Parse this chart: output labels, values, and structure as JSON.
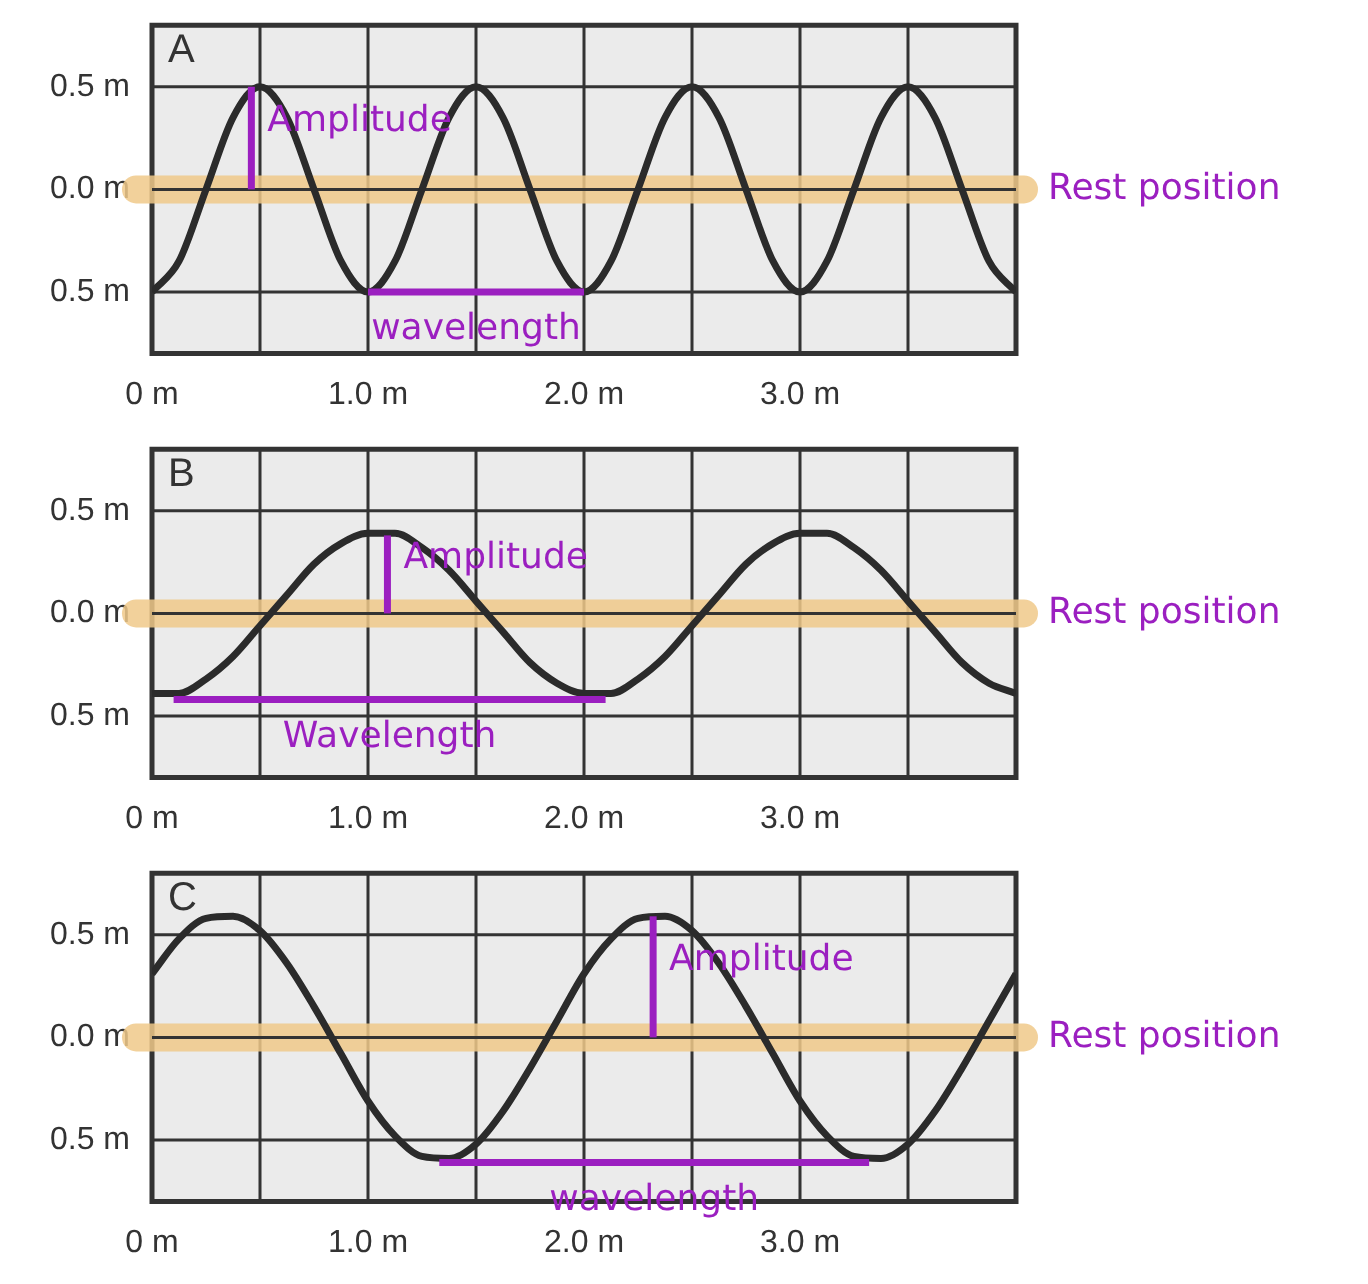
{
  "chart_data": [
    {
      "type": "line",
      "title": "A",
      "x": [
        0,
        0.125,
        0.25,
        0.375,
        0.5,
        0.625,
        0.75,
        0.875,
        1,
        1.125,
        1.25,
        1.375,
        1.5,
        1.625,
        1.75,
        1.875,
        2,
        2.125,
        2.25,
        2.375,
        2.5,
        2.625,
        2.75,
        2.875,
        3,
        3.125,
        3.25,
        3.375,
        3.5,
        3.625,
        3.75,
        3.875,
        4
      ],
      "series": [
        {
          "color": "#2b2b2b",
          "marker": "none",
          "values": [
            -0.5,
            -0.35,
            0,
            0.35,
            0.5,
            0.35,
            0,
            -0.35,
            -0.5,
            -0.35,
            0,
            0.35,
            0.5,
            0.35,
            0,
            -0.35,
            -0.5,
            -0.35,
            0,
            0.35,
            0.5,
            0.35,
            0,
            -0.35,
            -0.5,
            -0.35,
            0,
            0.35,
            0.5,
            0.35,
            0,
            -0.35,
            -0.5
          ]
        },
        {
          "type": "line",
          "name": "wavelength",
          "color": "#9b1fc0",
          "x": [
            1,
            2
          ],
          "values": [
            -0.5,
            -0.5
          ]
        }
      ],
      "xlim": [
        0,
        4
      ],
      "xticks": [
        {
          "value": 0,
          "label": "0 m"
        },
        {
          "value": 0.5,
          "label": null
        },
        {
          "value": 1,
          "label": "1.0 m"
        },
        {
          "value": 1.5,
          "label": null
        },
        {
          "value": 2,
          "label": "2.0 m"
        },
        {
          "value": 2.5,
          "label": null
        },
        {
          "value": 3,
          "label": "3.0 m"
        },
        {
          "value": 3.5,
          "label": null
        }
      ],
      "ylim": [
        -0.8,
        0.8
      ],
      "yticks": [
        {
          "value": -0.5,
          "label": "0.5 m"
        },
        {
          "value": 0,
          "label": "0.0 m"
        },
        {
          "value": 0.5,
          "label": "0.5 m"
        }
      ],
      "grid": true,
      "ref_lines": [
        {
          "axis": "y",
          "value": 0,
          "label": "Rest position",
          "color": "#f0c98a"
        }
      ],
      "annotations": [
        {
          "text": "Amplitude",
          "x": 0.46,
          "y": 0.5
        }
      ]
    },
    {
      "type": "line",
      "title": "B",
      "x": [
        0,
        0.125,
        0.25,
        0.375,
        0.5,
        0.625,
        0.75,
        0.875,
        1,
        1.125,
        1.25,
        1.375,
        1.5,
        1.625,
        1.75,
        1.875,
        2,
        2.125,
        2.25,
        2.375,
        2.5,
        2.625,
        2.75,
        2.875,
        3,
        3.125,
        3.25,
        3.375,
        3.5,
        3.625,
        3.75,
        3.875,
        4
      ],
      "series": [
        {
          "color": "#2b2b2b",
          "marker": "none",
          "values": [
            -0.39,
            -0.39,
            -0.32,
            -0.21,
            -0.06,
            0.09,
            0.24,
            0.34,
            0.39,
            0.39,
            0.32,
            0.21,
            0.06,
            -0.09,
            -0.24,
            -0.34,
            -0.39,
            -0.39,
            -0.32,
            -0.21,
            -0.06,
            0.09,
            0.24,
            0.34,
            0.39,
            0.39,
            0.32,
            0.21,
            0.06,
            -0.09,
            -0.24,
            -0.34,
            -0.39
          ]
        },
        {
          "type": "line",
          "name": "Wavelength",
          "color": "#9b1fc0",
          "x": [
            0.1,
            2.1
          ],
          "values": [
            -0.42,
            -0.42
          ]
        }
      ],
      "xlim": [
        0,
        4
      ],
      "xticks": [
        {
          "value": 0,
          "label": "0 m"
        },
        {
          "value": 0.5,
          "label": null
        },
        {
          "value": 1,
          "label": "1.0 m"
        },
        {
          "value": 1.5,
          "label": null
        },
        {
          "value": 2,
          "label": "2.0 m"
        },
        {
          "value": 2.5,
          "label": null
        },
        {
          "value": 3,
          "label": "3.0 m"
        },
        {
          "value": 3.5,
          "label": null
        }
      ],
      "ylim": [
        -0.8,
        0.8
      ],
      "yticks": [
        {
          "value": -0.5,
          "label": "0.5 m"
        },
        {
          "value": 0,
          "label": "0.0 m"
        },
        {
          "value": 0.5,
          "label": "0.5 m"
        }
      ],
      "grid": true,
      "ref_lines": [
        {
          "axis": "y",
          "value": 0,
          "label": "Rest position",
          "color": "#f0c98a"
        }
      ],
      "annotations": [
        {
          "text": "Amplitude",
          "x": 1.09,
          "y": 0.38
        }
      ]
    },
    {
      "type": "line",
      "title": "C",
      "x": [
        0,
        0.125,
        0.25,
        0.375,
        0.5,
        0.625,
        0.75,
        0.875,
        1,
        1.125,
        1.25,
        1.375,
        1.5,
        1.625,
        1.75,
        1.875,
        2,
        2.125,
        2.25,
        2.375,
        2.5,
        2.625,
        2.75,
        2.875,
        3,
        3.125,
        3.25,
        3.375,
        3.5,
        3.625,
        3.75,
        3.875,
        4
      ],
      "series": [
        {
          "color": "#2b2b2b",
          "marker": "none",
          "values": [
            0.31,
            0.48,
            0.58,
            0.59,
            0.52,
            0.36,
            0.15,
            -0.08,
            -0.31,
            -0.48,
            -0.58,
            -0.59,
            -0.52,
            -0.36,
            -0.15,
            0.08,
            0.31,
            0.48,
            0.58,
            0.59,
            0.52,
            0.36,
            0.15,
            -0.08,
            -0.31,
            -0.48,
            -0.58,
            -0.59,
            -0.52,
            -0.36,
            -0.15,
            0.08,
            0.31
          ]
        },
        {
          "type": "line",
          "name": "wavelength",
          "color": "#9b1fc0",
          "x": [
            1.33,
            3.32
          ],
          "values": [
            -0.61,
            -0.61
          ]
        }
      ],
      "xlim": [
        0,
        4
      ],
      "xticks": [
        {
          "value": 0,
          "label": "0 m"
        },
        {
          "value": 0.5,
          "label": null
        },
        {
          "value": 1,
          "label": "1.0 m"
        },
        {
          "value": 1.5,
          "label": null
        },
        {
          "value": 2,
          "label": "2.0 m"
        },
        {
          "value": 2.5,
          "label": null
        },
        {
          "value": 3,
          "label": "3.0 m"
        },
        {
          "value": 3.5,
          "label": null
        }
      ],
      "ylim": [
        -0.8,
        0.8
      ],
      "yticks": [
        {
          "value": -0.5,
          "label": "0.5 m"
        },
        {
          "value": 0,
          "label": "0.0 m"
        },
        {
          "value": 0.5,
          "label": "0.5 m"
        }
      ],
      "grid": true,
      "ref_lines": [
        {
          "axis": "y",
          "value": 0,
          "label": "Rest position",
          "color": "#f0c98a"
        }
      ],
      "annotations": [
        {
          "text": "Amplitude",
          "x": 2.32,
          "y": 0.59
        }
      ]
    }
  ]
}
